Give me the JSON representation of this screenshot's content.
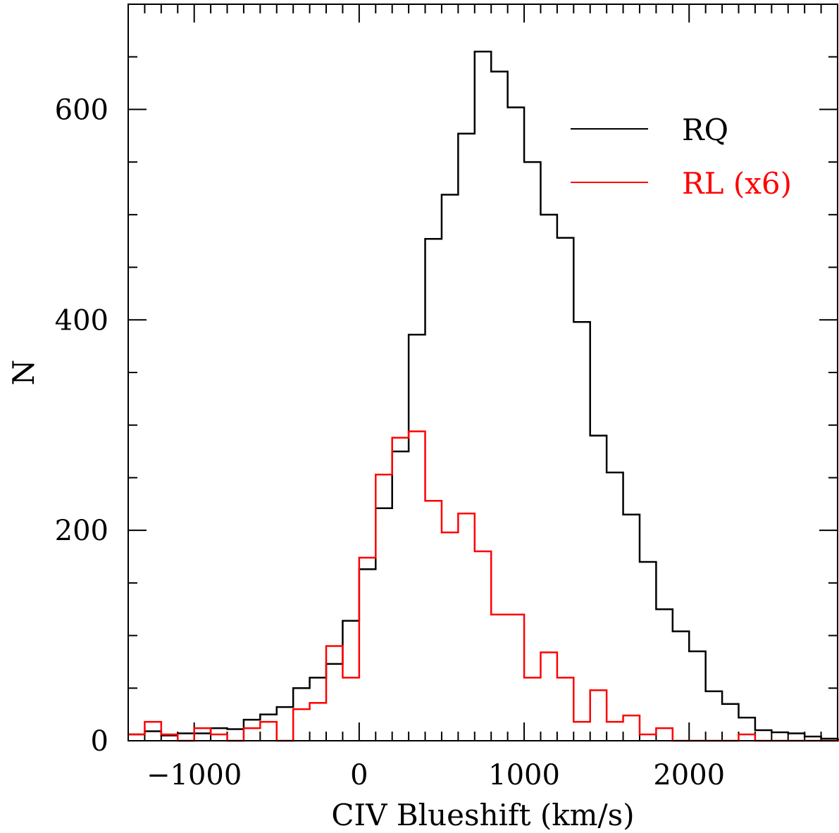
{
  "chart_data": {
    "type": "histogram",
    "xlabel": "CIV Blueshift (km/s)",
    "ylabel": "N",
    "xlim": [
      -1400,
      2900
    ],
    "ylim": [
      0,
      700
    ],
    "x_ticks": [
      -1000,
      0,
      1000,
      2000
    ],
    "x_tick_labels": [
      "−1000",
      "0",
      "1000",
      "2000"
    ],
    "y_ticks": [
      0,
      200,
      400,
      600
    ],
    "y_tick_labels": [
      "0",
      "200",
      "400",
      "600"
    ],
    "x_minor_step": 100,
    "y_minor_step": 50,
    "grid": false,
    "legend_position": "top-right",
    "bin_width": 100,
    "bin_edges_start": -1400,
    "series": [
      {
        "name": "RQ",
        "color": "#000000",
        "values": [
          6,
          9,
          5,
          7,
          7,
          12,
          11,
          20,
          25,
          32,
          50,
          60,
          73,
          114,
          163,
          221,
          275,
          386,
          477,
          519,
          577,
          655,
          636,
          602,
          550,
          500,
          478,
          398,
          290,
          255,
          215,
          170,
          125,
          104,
          85,
          47,
          35,
          22,
          10,
          8,
          7,
          4,
          2,
          1
        ]
      },
      {
        "name": "RL (x6)",
        "color": "#ff0000",
        "values": [
          6,
          18,
          6,
          0,
          12,
          6,
          0,
          12,
          18,
          0,
          30,
          36,
          90,
          60,
          174,
          253,
          288,
          294,
          228,
          198,
          216,
          180,
          120,
          120,
          60,
          84,
          60,
          18,
          48,
          18,
          24,
          6,
          12,
          0,
          0,
          0,
          0,
          6,
          0,
          0,
          0,
          0,
          0,
          0
        ]
      }
    ]
  }
}
